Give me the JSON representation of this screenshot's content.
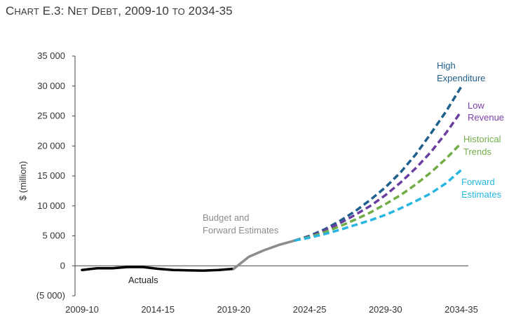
{
  "chart_data": {
    "type": "line",
    "title_prefix": "C",
    "title_small_1": "HART",
    "title_mid": " E.3: N",
    "title_small_2": "ET",
    "title_mid2": " D",
    "title_small_3": "EBT",
    "title_tail": ", 2009-10 ",
    "title_small_4": "TO",
    "title_end": " 2034-35",
    "ylabel": "$ (million)",
    "ylim": [
      -5000,
      35000
    ],
    "yticks": [
      {
        "value": 35000,
        "label": "35 000"
      },
      {
        "value": 30000,
        "label": "30 000"
      },
      {
        "value": 25000,
        "label": "25 000"
      },
      {
        "value": 20000,
        "label": "20 000"
      },
      {
        "value": 15000,
        "label": "15 000"
      },
      {
        "value": 10000,
        "label": "10 000"
      },
      {
        "value": 5000,
        "label": "5 000"
      },
      {
        "value": 0,
        "label": "0"
      },
      {
        "value": -5000,
        "label": "(5 000)"
      }
    ],
    "xticks": [
      {
        "index": 0,
        "label": "2009-10"
      },
      {
        "index": 5,
        "label": "2014-15"
      },
      {
        "index": 10,
        "label": "2019-20"
      },
      {
        "index": 15,
        "label": "2024-25"
      },
      {
        "index": 20,
        "label": "2029-30"
      },
      {
        "index": 25,
        "label": "2034-35"
      }
    ],
    "grid": false,
    "series": [
      {
        "name": "Actuals",
        "color": "#000000",
        "style": "solid",
        "x": [
          0,
          1,
          2,
          3,
          4,
          5,
          6,
          7,
          8,
          9,
          10
        ],
        "y": [
          -700,
          -400,
          -400,
          -200,
          -200,
          -500,
          -700,
          -750,
          -800,
          -700,
          -500
        ]
      },
      {
        "name": "Budget and Forward Estimates",
        "color": "#8c8c8c",
        "style": "solid",
        "x": [
          10,
          11,
          12,
          13,
          14
        ],
        "y": [
          -500,
          1500,
          2600,
          3500,
          4200
        ]
      },
      {
        "name": "High Expenditure",
        "color": "#1f5f8b",
        "style": "dashed",
        "x": [
          14,
          15,
          16,
          17,
          18,
          19,
          20,
          21,
          22,
          23,
          24,
          25
        ],
        "y": [
          4200,
          5000,
          6100,
          7500,
          9100,
          11000,
          13100,
          15600,
          18600,
          22100,
          25800,
          29900
        ]
      },
      {
        "name": "Low Revenue",
        "color": "#6b3fa0",
        "style": "dashed",
        "x": [
          14,
          15,
          16,
          17,
          18,
          19,
          20,
          21,
          22,
          23,
          24,
          25
        ],
        "y": [
          4200,
          4900,
          5900,
          7100,
          8500,
          10000,
          11800,
          13900,
          16300,
          19000,
          22200,
          25800
        ]
      },
      {
        "name": "Historical Trends",
        "color": "#70ad47",
        "style": "dashed",
        "x": [
          14,
          15,
          16,
          17,
          18,
          19,
          20,
          21,
          22,
          23,
          24,
          25
        ],
        "y": [
          4200,
          4800,
          5600,
          6600,
          7700,
          8900,
          10300,
          11800,
          13600,
          15600,
          17900,
          20500
        ]
      },
      {
        "name": "Forward Estimates",
        "color": "#29b6e0",
        "style": "dashed",
        "x": [
          14,
          15,
          16,
          17,
          18,
          19,
          20,
          21,
          22,
          23,
          24,
          25
        ],
        "y": [
          4200,
          4700,
          5300,
          6000,
          6800,
          7600,
          8500,
          9600,
          10800,
          12100,
          13800,
          16000
        ]
      }
    ],
    "annotations": {
      "budget_line1": "Budget and",
      "budget_line2": "Forward Estimates",
      "actuals": "Actuals",
      "high_1": "High",
      "high_2": "Expenditure",
      "low_1": "Low",
      "low_2": "Revenue",
      "hist_1": "Historical",
      "hist_2": "Trends",
      "fwd_1": "Forward",
      "fwd_2": "Estimates"
    },
    "colors": {
      "axis": "#333333",
      "budget_text": "#8c8c8c",
      "high_text": "#1f5f8b",
      "low_text": "#7b3fa8",
      "hist_text": "#70ad47",
      "fwd_text": "#29b6e0"
    }
  }
}
